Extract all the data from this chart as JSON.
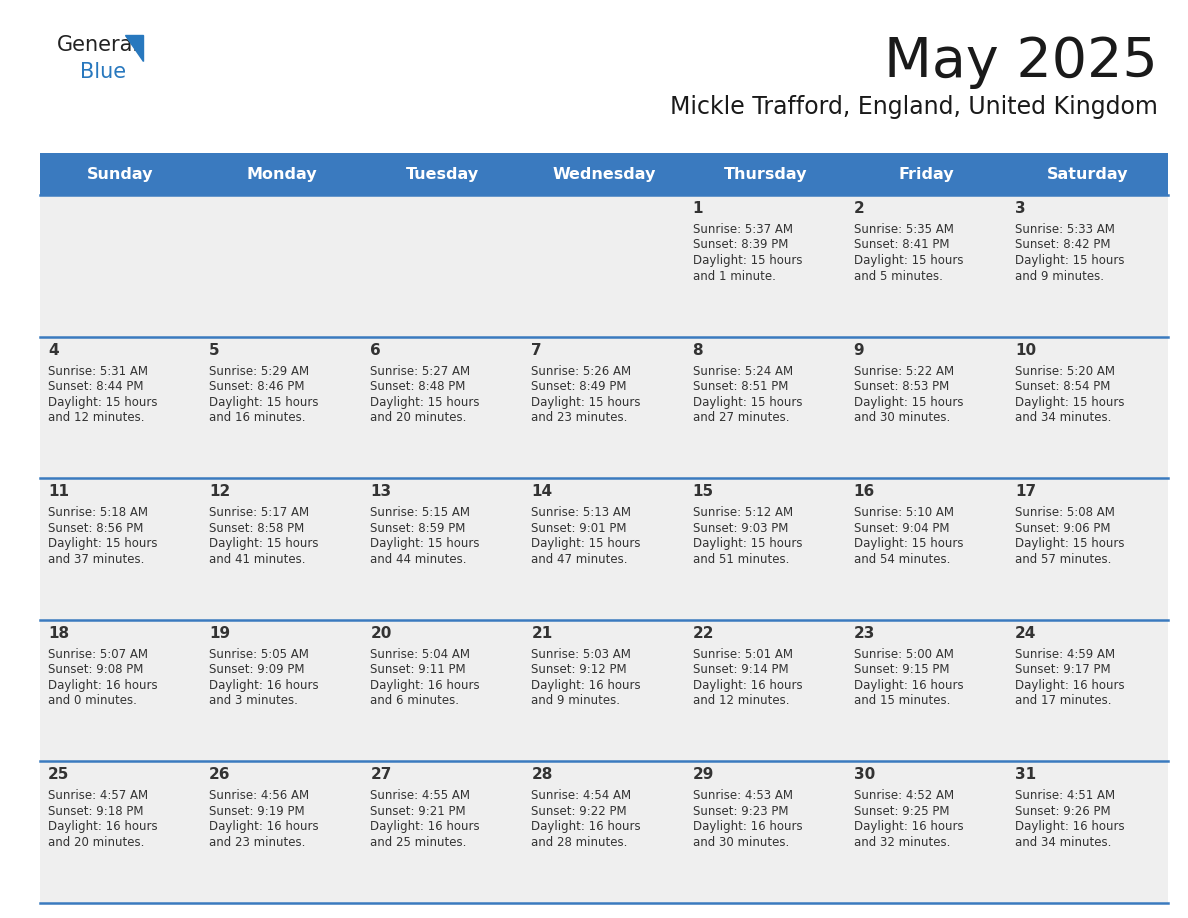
{
  "title": "May 2025",
  "subtitle": "Mickle Trafford, England, United Kingdom",
  "days_of_week": [
    "Sunday",
    "Monday",
    "Tuesday",
    "Wednesday",
    "Thursday",
    "Friday",
    "Saturday"
  ],
  "header_bg": "#3a7abf",
  "header_text": "#ffffff",
  "cell_bg_light": "#efefef",
  "cell_bg_white": "#ffffff",
  "row_line_color": "#3a7abf",
  "text_color": "#333333",
  "logo_general_color": "#222222",
  "logo_blue_color": "#2878be",
  "logo_triangle_color": "#2878be",
  "calendar": [
    [
      null,
      null,
      null,
      null,
      {
        "day": 1,
        "sunrise": "5:37 AM",
        "sunset": "8:39 PM",
        "daylight": "15 hours",
        "daylight2": "and 1 minute."
      },
      {
        "day": 2,
        "sunrise": "5:35 AM",
        "sunset": "8:41 PM",
        "daylight": "15 hours",
        "daylight2": "and 5 minutes."
      },
      {
        "day": 3,
        "sunrise": "5:33 AM",
        "sunset": "8:42 PM",
        "daylight": "15 hours",
        "daylight2": "and 9 minutes."
      }
    ],
    [
      {
        "day": 4,
        "sunrise": "5:31 AM",
        "sunset": "8:44 PM",
        "daylight": "15 hours",
        "daylight2": "and 12 minutes."
      },
      {
        "day": 5,
        "sunrise": "5:29 AM",
        "sunset": "8:46 PM",
        "daylight": "15 hours",
        "daylight2": "and 16 minutes."
      },
      {
        "day": 6,
        "sunrise": "5:27 AM",
        "sunset": "8:48 PM",
        "daylight": "15 hours",
        "daylight2": "and 20 minutes."
      },
      {
        "day": 7,
        "sunrise": "5:26 AM",
        "sunset": "8:49 PM",
        "daylight": "15 hours",
        "daylight2": "and 23 minutes."
      },
      {
        "day": 8,
        "sunrise": "5:24 AM",
        "sunset": "8:51 PM",
        "daylight": "15 hours",
        "daylight2": "and 27 minutes."
      },
      {
        "day": 9,
        "sunrise": "5:22 AM",
        "sunset": "8:53 PM",
        "daylight": "15 hours",
        "daylight2": "and 30 minutes."
      },
      {
        "day": 10,
        "sunrise": "5:20 AM",
        "sunset": "8:54 PM",
        "daylight": "15 hours",
        "daylight2": "and 34 minutes."
      }
    ],
    [
      {
        "day": 11,
        "sunrise": "5:18 AM",
        "sunset": "8:56 PM",
        "daylight": "15 hours",
        "daylight2": "and 37 minutes."
      },
      {
        "day": 12,
        "sunrise": "5:17 AM",
        "sunset": "8:58 PM",
        "daylight": "15 hours",
        "daylight2": "and 41 minutes."
      },
      {
        "day": 13,
        "sunrise": "5:15 AM",
        "sunset": "8:59 PM",
        "daylight": "15 hours",
        "daylight2": "and 44 minutes."
      },
      {
        "day": 14,
        "sunrise": "5:13 AM",
        "sunset": "9:01 PM",
        "daylight": "15 hours",
        "daylight2": "and 47 minutes."
      },
      {
        "day": 15,
        "sunrise": "5:12 AM",
        "sunset": "9:03 PM",
        "daylight": "15 hours",
        "daylight2": "and 51 minutes."
      },
      {
        "day": 16,
        "sunrise": "5:10 AM",
        "sunset": "9:04 PM",
        "daylight": "15 hours",
        "daylight2": "and 54 minutes."
      },
      {
        "day": 17,
        "sunrise": "5:08 AM",
        "sunset": "9:06 PM",
        "daylight": "15 hours",
        "daylight2": "and 57 minutes."
      }
    ],
    [
      {
        "day": 18,
        "sunrise": "5:07 AM",
        "sunset": "9:08 PM",
        "daylight": "16 hours",
        "daylight2": "and 0 minutes."
      },
      {
        "day": 19,
        "sunrise": "5:05 AM",
        "sunset": "9:09 PM",
        "daylight": "16 hours",
        "daylight2": "and 3 minutes."
      },
      {
        "day": 20,
        "sunrise": "5:04 AM",
        "sunset": "9:11 PM",
        "daylight": "16 hours",
        "daylight2": "and 6 minutes."
      },
      {
        "day": 21,
        "sunrise": "5:03 AM",
        "sunset": "9:12 PM",
        "daylight": "16 hours",
        "daylight2": "and 9 minutes."
      },
      {
        "day": 22,
        "sunrise": "5:01 AM",
        "sunset": "9:14 PM",
        "daylight": "16 hours",
        "daylight2": "and 12 minutes."
      },
      {
        "day": 23,
        "sunrise": "5:00 AM",
        "sunset": "9:15 PM",
        "daylight": "16 hours",
        "daylight2": "and 15 minutes."
      },
      {
        "day": 24,
        "sunrise": "4:59 AM",
        "sunset": "9:17 PM",
        "daylight": "16 hours",
        "daylight2": "and 17 minutes."
      }
    ],
    [
      {
        "day": 25,
        "sunrise": "4:57 AM",
        "sunset": "9:18 PM",
        "daylight": "16 hours",
        "daylight2": "and 20 minutes."
      },
      {
        "day": 26,
        "sunrise": "4:56 AM",
        "sunset": "9:19 PM",
        "daylight": "16 hours",
        "daylight2": "and 23 minutes."
      },
      {
        "day": 27,
        "sunrise": "4:55 AM",
        "sunset": "9:21 PM",
        "daylight": "16 hours",
        "daylight2": "and 25 minutes."
      },
      {
        "day": 28,
        "sunrise": "4:54 AM",
        "sunset": "9:22 PM",
        "daylight": "16 hours",
        "daylight2": "and 28 minutes."
      },
      {
        "day": 29,
        "sunrise": "4:53 AM",
        "sunset": "9:23 PM",
        "daylight": "16 hours",
        "daylight2": "and 30 minutes."
      },
      {
        "day": 30,
        "sunrise": "4:52 AM",
        "sunset": "9:25 PM",
        "daylight": "16 hours",
        "daylight2": "and 32 minutes."
      },
      {
        "day": 31,
        "sunrise": "4:51 AM",
        "sunset": "9:26 PM",
        "daylight": "16 hours",
        "daylight2": "and 34 minutes."
      }
    ]
  ]
}
